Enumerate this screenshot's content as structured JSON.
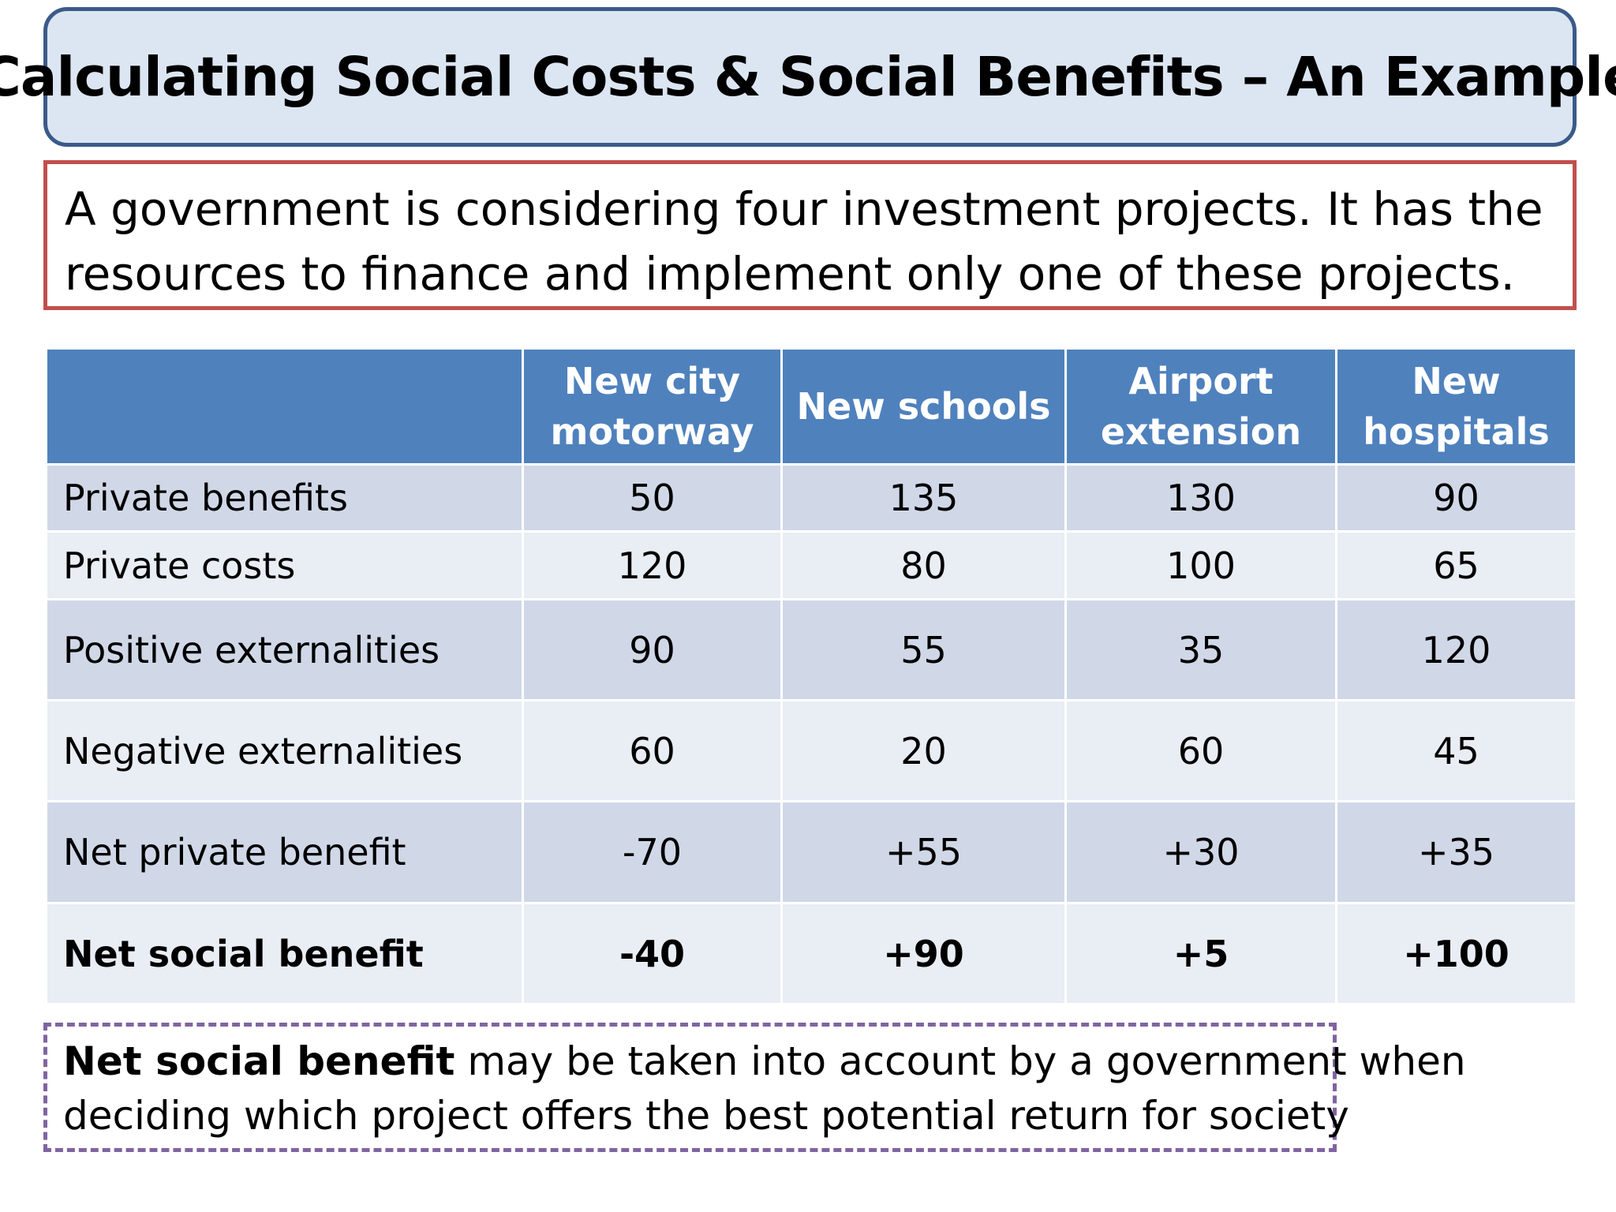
{
  "title": "Calculating Social Costs & Social Benefits – An Example",
  "intro": {
    "line1": "A government is considering four investment projects. It has the",
    "line2": "resources to finance and implement only one of these projects."
  },
  "table": {
    "columns": [
      {
        "line1": "New city",
        "line2": "motorway"
      },
      {
        "line1": "New schools",
        "line2": ""
      },
      {
        "line1": "Airport",
        "line2": "extension"
      },
      {
        "line1": "New",
        "line2": "hospitals"
      }
    ],
    "rows": [
      {
        "label": "Private benefits",
        "values": [
          "50",
          "135",
          "130",
          "90"
        ]
      },
      {
        "label": "Private costs",
        "values": [
          "120",
          "80",
          "100",
          "65"
        ]
      },
      {
        "label": "Positive externalities",
        "values": [
          "90",
          "55",
          "35",
          "120"
        ]
      },
      {
        "label": "Negative externalities",
        "values": [
          "60",
          "20",
          "60",
          "45"
        ]
      },
      {
        "label": "Net private benefit",
        "values": [
          "-70",
          "+55",
          "+30",
          "+35"
        ]
      },
      {
        "label": "Net social benefit",
        "values": [
          "-40",
          "+90",
          "+5",
          "+100"
        ]
      }
    ]
  },
  "note": {
    "bold": "Net social benefit",
    "rest1": " may be taken into account by a government when",
    "line2": "deciding which project offers the best potential return for society"
  }
}
